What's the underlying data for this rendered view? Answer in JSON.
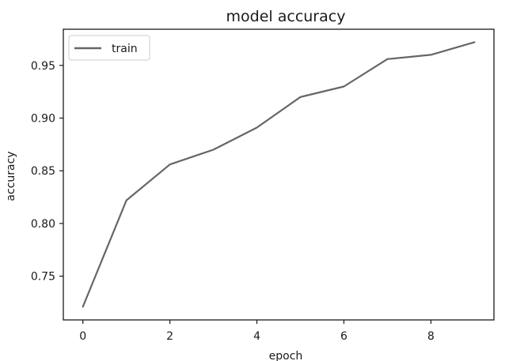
{
  "chart_data": {
    "type": "line",
    "title": "model accuracy",
    "xlabel": "epoch",
    "ylabel": "accuracy",
    "x": [
      0,
      1,
      2,
      3,
      4,
      5,
      6,
      7,
      8,
      9
    ],
    "series": [
      {
        "name": "train",
        "values": [
          0.721,
          0.822,
          0.856,
          0.87,
          0.891,
          0.92,
          0.93,
          0.956,
          0.96,
          0.972
        ],
        "color": "#666666"
      }
    ],
    "xlim": [
      -0.45,
      9.45
    ],
    "ylim": [
      0.7085,
      0.9843
    ],
    "xticks": [
      {
        "value": 0,
        "label": "0"
      },
      {
        "value": 2,
        "label": "2"
      },
      {
        "value": 4,
        "label": "4"
      },
      {
        "value": 6,
        "label": "6"
      },
      {
        "value": 8,
        "label": "8"
      }
    ],
    "yticks": [
      {
        "value": 0.75,
        "label": "0.75"
      },
      {
        "value": 0.8,
        "label": "0.80"
      },
      {
        "value": 0.85,
        "label": "0.85"
      },
      {
        "value": 0.9,
        "label": "0.90"
      },
      {
        "value": 0.95,
        "label": "0.95"
      }
    ],
    "grid": false,
    "legend": "upper-left",
    "axis_color": "#1a1a1a"
  }
}
